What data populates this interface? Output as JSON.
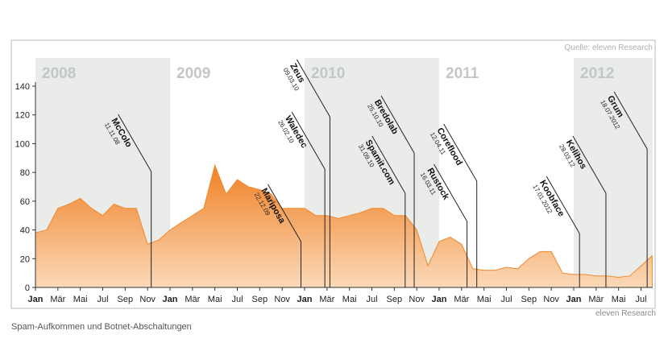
{
  "chart_data": {
    "type": "area",
    "source": "Quelle: eleven Research",
    "credit": "eleven Research",
    "caption": "Spam-Aufkommen und Botnet-Abschaltungen",
    "years": [
      "2008",
      "2009",
      "2010",
      "2011",
      "2012"
    ],
    "categories": [
      "Jan",
      null,
      "Mär",
      null,
      "Mai",
      null,
      "Jul",
      null,
      "Sep",
      null,
      "Nov",
      null,
      "Jan",
      null,
      "Mär",
      null,
      "Mai",
      null,
      "Jul",
      null,
      "Sep",
      null,
      "Nov",
      null,
      "Jan",
      null,
      "Mär",
      null,
      "Mai",
      null,
      "Jul",
      null,
      "Sep",
      null,
      "Nov",
      null,
      "Jan",
      null,
      "Mär",
      null,
      "Mai",
      null,
      "Jul",
      null,
      "Sep",
      null,
      "Nov",
      null,
      "Jan",
      null,
      "Mär",
      null,
      "Mai",
      null,
      "Jul",
      null
    ],
    "values": [
      38,
      40,
      55,
      58,
      62,
      55,
      50,
      58,
      55,
      55,
      30,
      33,
      40,
      45,
      50,
      55,
      85,
      65,
      75,
      70,
      68,
      65,
      55,
      55,
      55,
      50,
      50,
      48,
      50,
      52,
      55,
      55,
      50,
      50,
      40,
      15,
      32,
      35,
      30,
      13,
      12,
      12,
      14,
      13,
      20,
      25,
      25,
      10,
      9,
      9,
      8,
      8,
      7,
      8,
      15,
      22
    ],
    "color": "#f08a2c",
    "ylim": [
      0,
      140
    ],
    "yticks": [
      0,
      20,
      40,
      60,
      80,
      100,
      120,
      140
    ],
    "annotations": [
      {
        "label": "McColo",
        "date": "11.11.08"
      },
      {
        "label": "Mariposa",
        "date": "22.12.09"
      },
      {
        "label": "Zeus",
        "date": "09.03.10"
      },
      {
        "label": "Waledec",
        "date": "26.02.10"
      },
      {
        "label": "Bredolab",
        "date": "25.10.10"
      },
      {
        "label": "Spamit.com",
        "date": "31.09.10"
      },
      {
        "label": "Coreflood",
        "date": "12.04.11"
      },
      {
        "label": "Rustock",
        "date": "16.03.11"
      },
      {
        "label": "Koobface",
        "date": "17.01.2012"
      },
      {
        "label": "Kelihos",
        "date": "28.03.12"
      },
      {
        "label": "Grum",
        "date": "18.07.2012"
      }
    ]
  }
}
